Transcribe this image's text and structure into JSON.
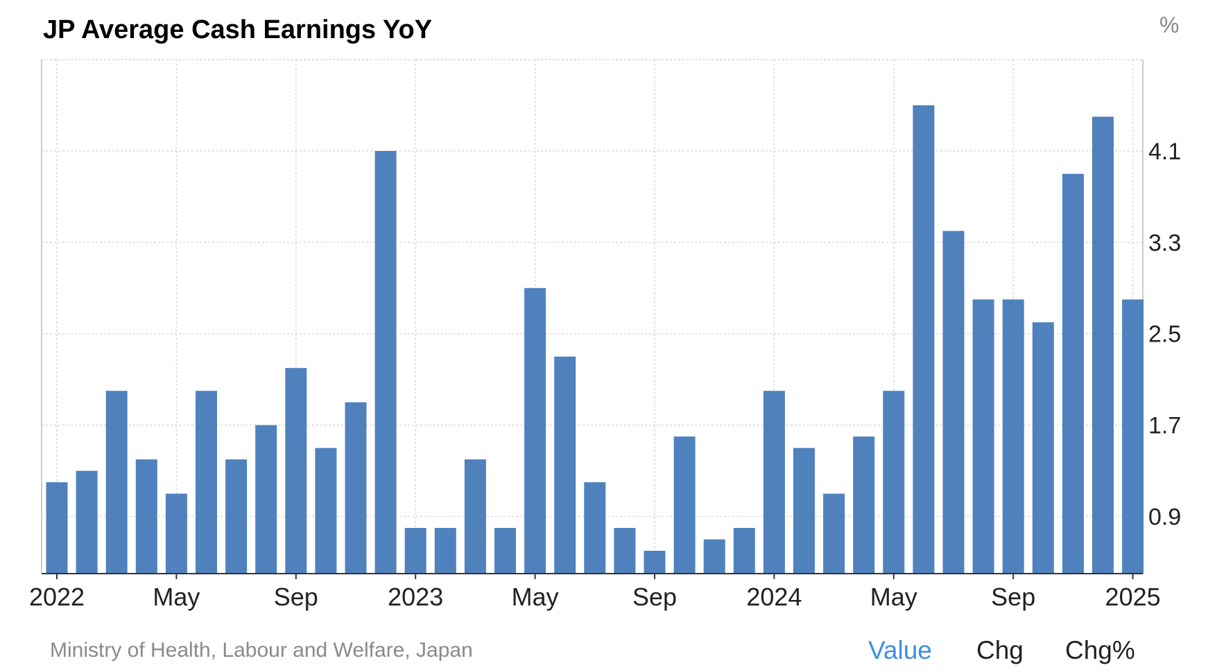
{
  "header": {
    "title": "JP Average Cash Earnings YoY",
    "unit": "%"
  },
  "footer": {
    "source": "Ministry of Health, Labour and Welfare, Japan",
    "tabs": [
      {
        "label": "Value",
        "active": true
      },
      {
        "label": "Chg",
        "active": false
      },
      {
        "label": "Chg%",
        "active": false
      }
    ]
  },
  "colors": {
    "bar": "#4f81bd",
    "active_tab": "#3f8fe0",
    "grid": "#d9d9d9"
  },
  "chart_data": {
    "type": "bar",
    "title": "JP Average Cash Earnings YoY",
    "ylabel": "%",
    "ylim": [
      0.4,
      4.9
    ],
    "yticks": [
      "0.9",
      "1.7",
      "2.5",
      "3.3",
      "4.1"
    ],
    "xticks": [
      {
        "label": "2022",
        "index": 0
      },
      {
        "label": "May",
        "index": 4
      },
      {
        "label": "Sep",
        "index": 8
      },
      {
        "label": "2023",
        "index": 12
      },
      {
        "label": "May",
        "index": 16
      },
      {
        "label": "Sep",
        "index": 20
      },
      {
        "label": "2024",
        "index": 24
      },
      {
        "label": "May",
        "index": 28
      },
      {
        "label": "Sep",
        "index": 32
      },
      {
        "label": "2025",
        "index": 36
      }
    ],
    "categories": [
      "Jan 2022",
      "Feb 2022",
      "Mar 2022",
      "Apr 2022",
      "May 2022",
      "Jun 2022",
      "Jul 2022",
      "Aug 2022",
      "Sep 2022",
      "Oct 2022",
      "Nov 2022",
      "Dec 2022",
      "Jan 2023",
      "Feb 2023",
      "Mar 2023",
      "Apr 2023",
      "May 2023",
      "Jun 2023",
      "Jul 2023",
      "Aug 2023",
      "Sep 2023",
      "Oct 2023",
      "Nov 2023",
      "Dec 2023",
      "Jan 2024",
      "Feb 2024",
      "Mar 2024",
      "Apr 2024",
      "May 2024",
      "Jun 2024",
      "Jul 2024",
      "Aug 2024",
      "Sep 2024",
      "Oct 2024",
      "Nov 2024",
      "Dec 2024",
      "Jan 2025"
    ],
    "values": [
      1.2,
      1.3,
      2.0,
      1.4,
      1.1,
      2.0,
      1.4,
      1.7,
      2.2,
      1.5,
      1.9,
      4.1,
      0.8,
      0.8,
      1.4,
      0.8,
      2.9,
      2.3,
      1.2,
      0.8,
      0.6,
      1.6,
      0.7,
      0.8,
      2.0,
      1.5,
      1.1,
      1.6,
      2.0,
      4.5,
      3.4,
      2.8,
      2.8,
      2.6,
      3.9,
      4.4,
      2.8
    ],
    "grid": true
  }
}
